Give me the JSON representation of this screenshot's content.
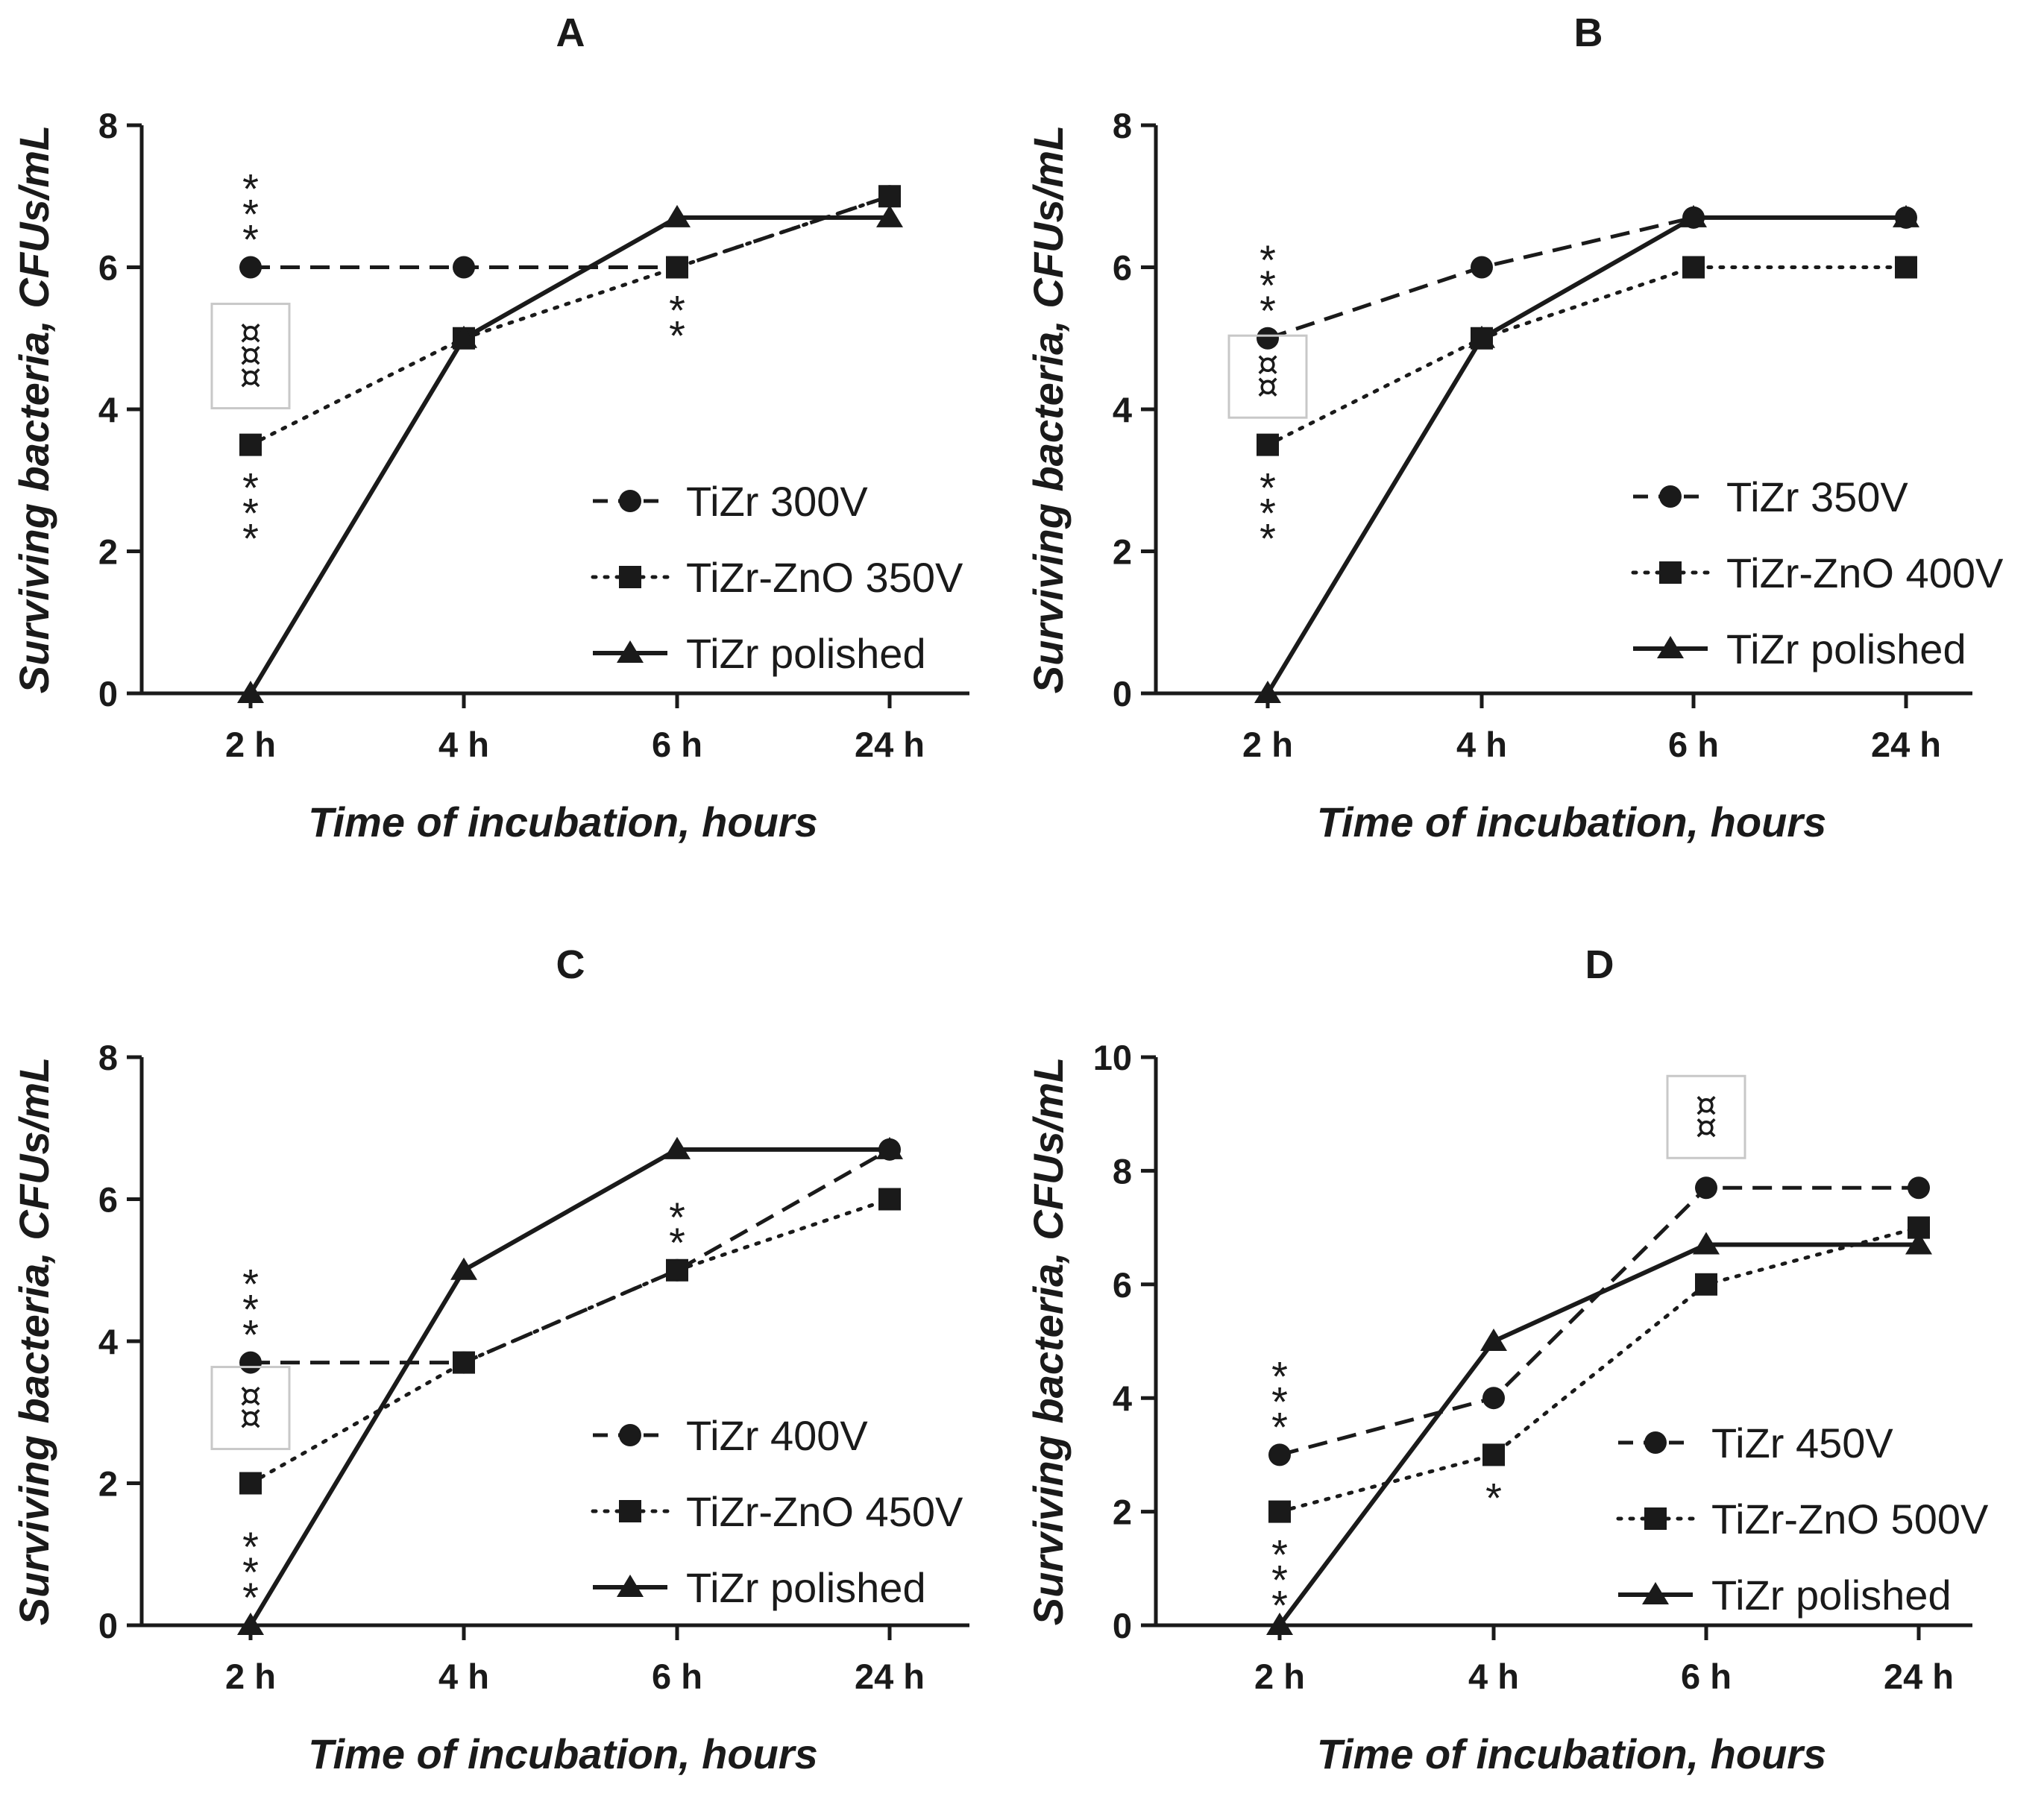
{
  "chart_data": [
    {
      "type": "line",
      "panel": "A",
      "x": [
        "2 h",
        "4 h",
        "6 h",
        "24 h"
      ],
      "xlabel": "Time of incubation, hours",
      "ylabel": "Surviving bacteria, CFUs/mL",
      "ylim": [
        0,
        8
      ],
      "yticks": [
        "0",
        "2",
        "4",
        "6",
        "8"
      ],
      "grid": false,
      "legend": "right",
      "series": [
        {
          "name": "TiZr 300V",
          "marker": "circle",
          "line": "dashed",
          "values": [
            6,
            6,
            6,
            7
          ]
        },
        {
          "name": "TiZr-ZnO 350V",
          "marker": "square",
          "line": "dotted",
          "values": [
            3.5,
            5,
            6,
            7
          ]
        },
        {
          "name": "TiZr polished",
          "marker": "triangle",
          "line": "solid",
          "values": [
            0,
            5,
            6.7,
            6.7
          ]
        }
      ],
      "annotations": [
        {
          "text": "***",
          "x": "2 h",
          "y": 6,
          "placement": "above"
        },
        {
          "text": "***",
          "x": "2 h",
          "y": 3.5,
          "placement": "below"
        },
        {
          "text": "**",
          "x": "6 h",
          "y": 6,
          "placement": "below"
        },
        {
          "text": "¤¤¤",
          "x": "2 h",
          "y_from": 3.5,
          "y_to": 6,
          "placement": "bracket"
        }
      ]
    },
    {
      "type": "line",
      "panel": "B",
      "x": [
        "2 h",
        "4 h",
        "6 h",
        "24 h"
      ],
      "xlabel": "Time of incubation, hours",
      "ylabel": "Surviving bacteria, CFUs/mL",
      "ylim": [
        0,
        8
      ],
      "yticks": [
        "0",
        "2",
        "4",
        "6",
        "8"
      ],
      "grid": false,
      "legend": "right",
      "series": [
        {
          "name": "TiZr 350V",
          "marker": "circle",
          "line": "dashed",
          "values": [
            5,
            6,
            6.7,
            6.7
          ]
        },
        {
          "name": "TiZr-ZnO 400V",
          "marker": "square",
          "line": "dotted",
          "values": [
            3.5,
            5,
            6,
            6
          ]
        },
        {
          "name": "TiZr polished",
          "marker": "triangle",
          "line": "solid",
          "values": [
            0,
            5,
            6.7,
            6.7
          ]
        }
      ],
      "annotations": [
        {
          "text": "***",
          "x": "2 h",
          "y": 5,
          "placement": "above"
        },
        {
          "text": "***",
          "x": "2 h",
          "y": 3.5,
          "placement": "below"
        },
        {
          "text": "¤¤",
          "x": "2 h",
          "y_from": 3.5,
          "y_to": 5,
          "placement": "bracket"
        }
      ]
    },
    {
      "type": "line",
      "panel": "C",
      "x": [
        "2 h",
        "4 h",
        "6 h",
        "24 h"
      ],
      "xlabel": "Time of incubation, hours",
      "ylabel": "Surviving bacteria, CFUs/mL",
      "ylim": [
        0,
        8
      ],
      "yticks": [
        "0",
        "2",
        "4",
        "6",
        "8"
      ],
      "grid": false,
      "legend": "right",
      "series": [
        {
          "name": "TiZr 400V",
          "marker": "circle",
          "line": "dashed",
          "values": [
            3.7,
            3.7,
            5,
            6.7
          ]
        },
        {
          "name": "TiZr-ZnO 450V",
          "marker": "square",
          "line": "dotted",
          "values": [
            2,
            3.7,
            5,
            6
          ]
        },
        {
          "name": "TiZr polished",
          "marker": "triangle",
          "line": "solid",
          "values": [
            0,
            5,
            6.7,
            6.7
          ]
        }
      ],
      "annotations": [
        {
          "text": "***",
          "x": "2 h",
          "y": 3.7,
          "placement": "above"
        },
        {
          "text": "***",
          "x": "2 h",
          "y": 0,
          "placement": "above"
        },
        {
          "text": "**",
          "x": "6 h",
          "y": 5,
          "placement": "above"
        },
        {
          "text": "¤¤",
          "x": "2 h",
          "y_from": 2,
          "y_to": 3.7,
          "placement": "bracket"
        }
      ]
    },
    {
      "type": "line",
      "panel": "D",
      "x": [
        "2 h",
        "4 h",
        "6 h",
        "24 h"
      ],
      "xlabel": "Time of incubation, hours",
      "ylabel": "Surviving bacteria, CFUs/mL",
      "ylim": [
        0,
        10
      ],
      "yticks": [
        "0",
        "2",
        "4",
        "6",
        "8",
        "10"
      ],
      "grid": false,
      "legend": "right",
      "series": [
        {
          "name": "TiZr 450V",
          "marker": "circle",
          "line": "dashed",
          "values": [
            3,
            4,
            7.7,
            7.7
          ]
        },
        {
          "name": "TiZr-ZnO 500V",
          "marker": "square",
          "line": "dotted",
          "values": [
            2,
            3,
            6,
            7
          ]
        },
        {
          "name": "TiZr polished",
          "marker": "triangle",
          "line": "solid",
          "values": [
            0,
            5,
            6.7,
            6.7
          ]
        }
      ],
      "annotations": [
        {
          "text": "***",
          "x": "2 h",
          "y": 3,
          "placement": "above"
        },
        {
          "text": "***",
          "x": "2 h",
          "y": 2,
          "placement": "below"
        },
        {
          "text": "*",
          "x": "4 h",
          "y": 3,
          "placement": "below"
        },
        {
          "text": "¤¤",
          "x": "6 h",
          "y_from": 7.7,
          "y_to": 7.7,
          "placement": "bracket"
        }
      ]
    }
  ]
}
